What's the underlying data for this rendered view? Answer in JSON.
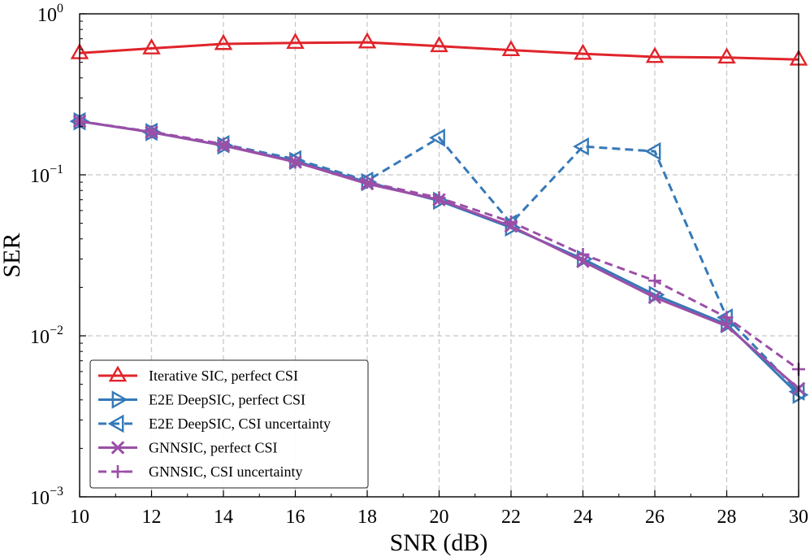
{
  "chart_data": {
    "type": "line",
    "title": "",
    "xlabel": "SNR (dB)",
    "ylabel": "SER",
    "xlim": [
      10,
      30
    ],
    "ylim": [
      0.001,
      1
    ],
    "yscale": "log",
    "grid": true,
    "legend_location": "bottom-left",
    "x": [
      10,
      12,
      14,
      16,
      18,
      20,
      22,
      24,
      26,
      28,
      30
    ],
    "xticks": [
      "10",
      "12",
      "14",
      "16",
      "18",
      "20",
      "22",
      "24",
      "26",
      "28",
      "30"
    ],
    "yticks": [
      {
        "base": "10",
        "exp": "0",
        "value": 1
      },
      {
        "base": "10",
        "exp": "−1",
        "value": 0.1
      },
      {
        "base": "10",
        "exp": "−2",
        "value": 0.01
      },
      {
        "base": "10",
        "exp": "−3",
        "value": 0.001
      }
    ],
    "series": [
      {
        "name": "Iterative SIC, perfect CSI",
        "color": "#e0242b",
        "marker": "triangle-up",
        "dash": false,
        "values": [
          0.57,
          0.61,
          0.65,
          0.66,
          0.665,
          0.63,
          0.595,
          0.565,
          0.54,
          0.535,
          0.52
        ]
      },
      {
        "name": "E2E DeepSIC, perfect CSI",
        "color": "#3579b8",
        "marker": "triangle-right",
        "dash": false,
        "values": [
          0.215,
          0.184,
          0.152,
          0.122,
          0.09,
          0.069,
          0.047,
          0.03,
          0.018,
          0.0118,
          0.0043
        ]
      },
      {
        "name": "E2E DeepSIC, CSI uncertainty",
        "color": "#3579b8",
        "marker": "triangle-left",
        "dash": true,
        "values": [
          0.215,
          0.185,
          0.155,
          0.125,
          0.092,
          0.17,
          0.05,
          0.15,
          0.14,
          0.013,
          0.0045
        ]
      },
      {
        "name": "GNNSIC, perfect CSI",
        "color": "#9b4fa7",
        "marker": "x",
        "dash": false,
        "values": [
          0.215,
          0.184,
          0.152,
          0.12,
          0.088,
          0.07,
          0.048,
          0.029,
          0.0173,
          0.0115,
          0.0047
        ]
      },
      {
        "name": "GNNSIC, CSI uncertainty",
        "color": "#9b4fa7",
        "marker": "plus",
        "dash": true,
        "values": [
          0.215,
          0.185,
          0.155,
          0.12,
          0.09,
          0.072,
          0.051,
          0.032,
          0.022,
          0.013,
          0.0062
        ]
      }
    ]
  }
}
